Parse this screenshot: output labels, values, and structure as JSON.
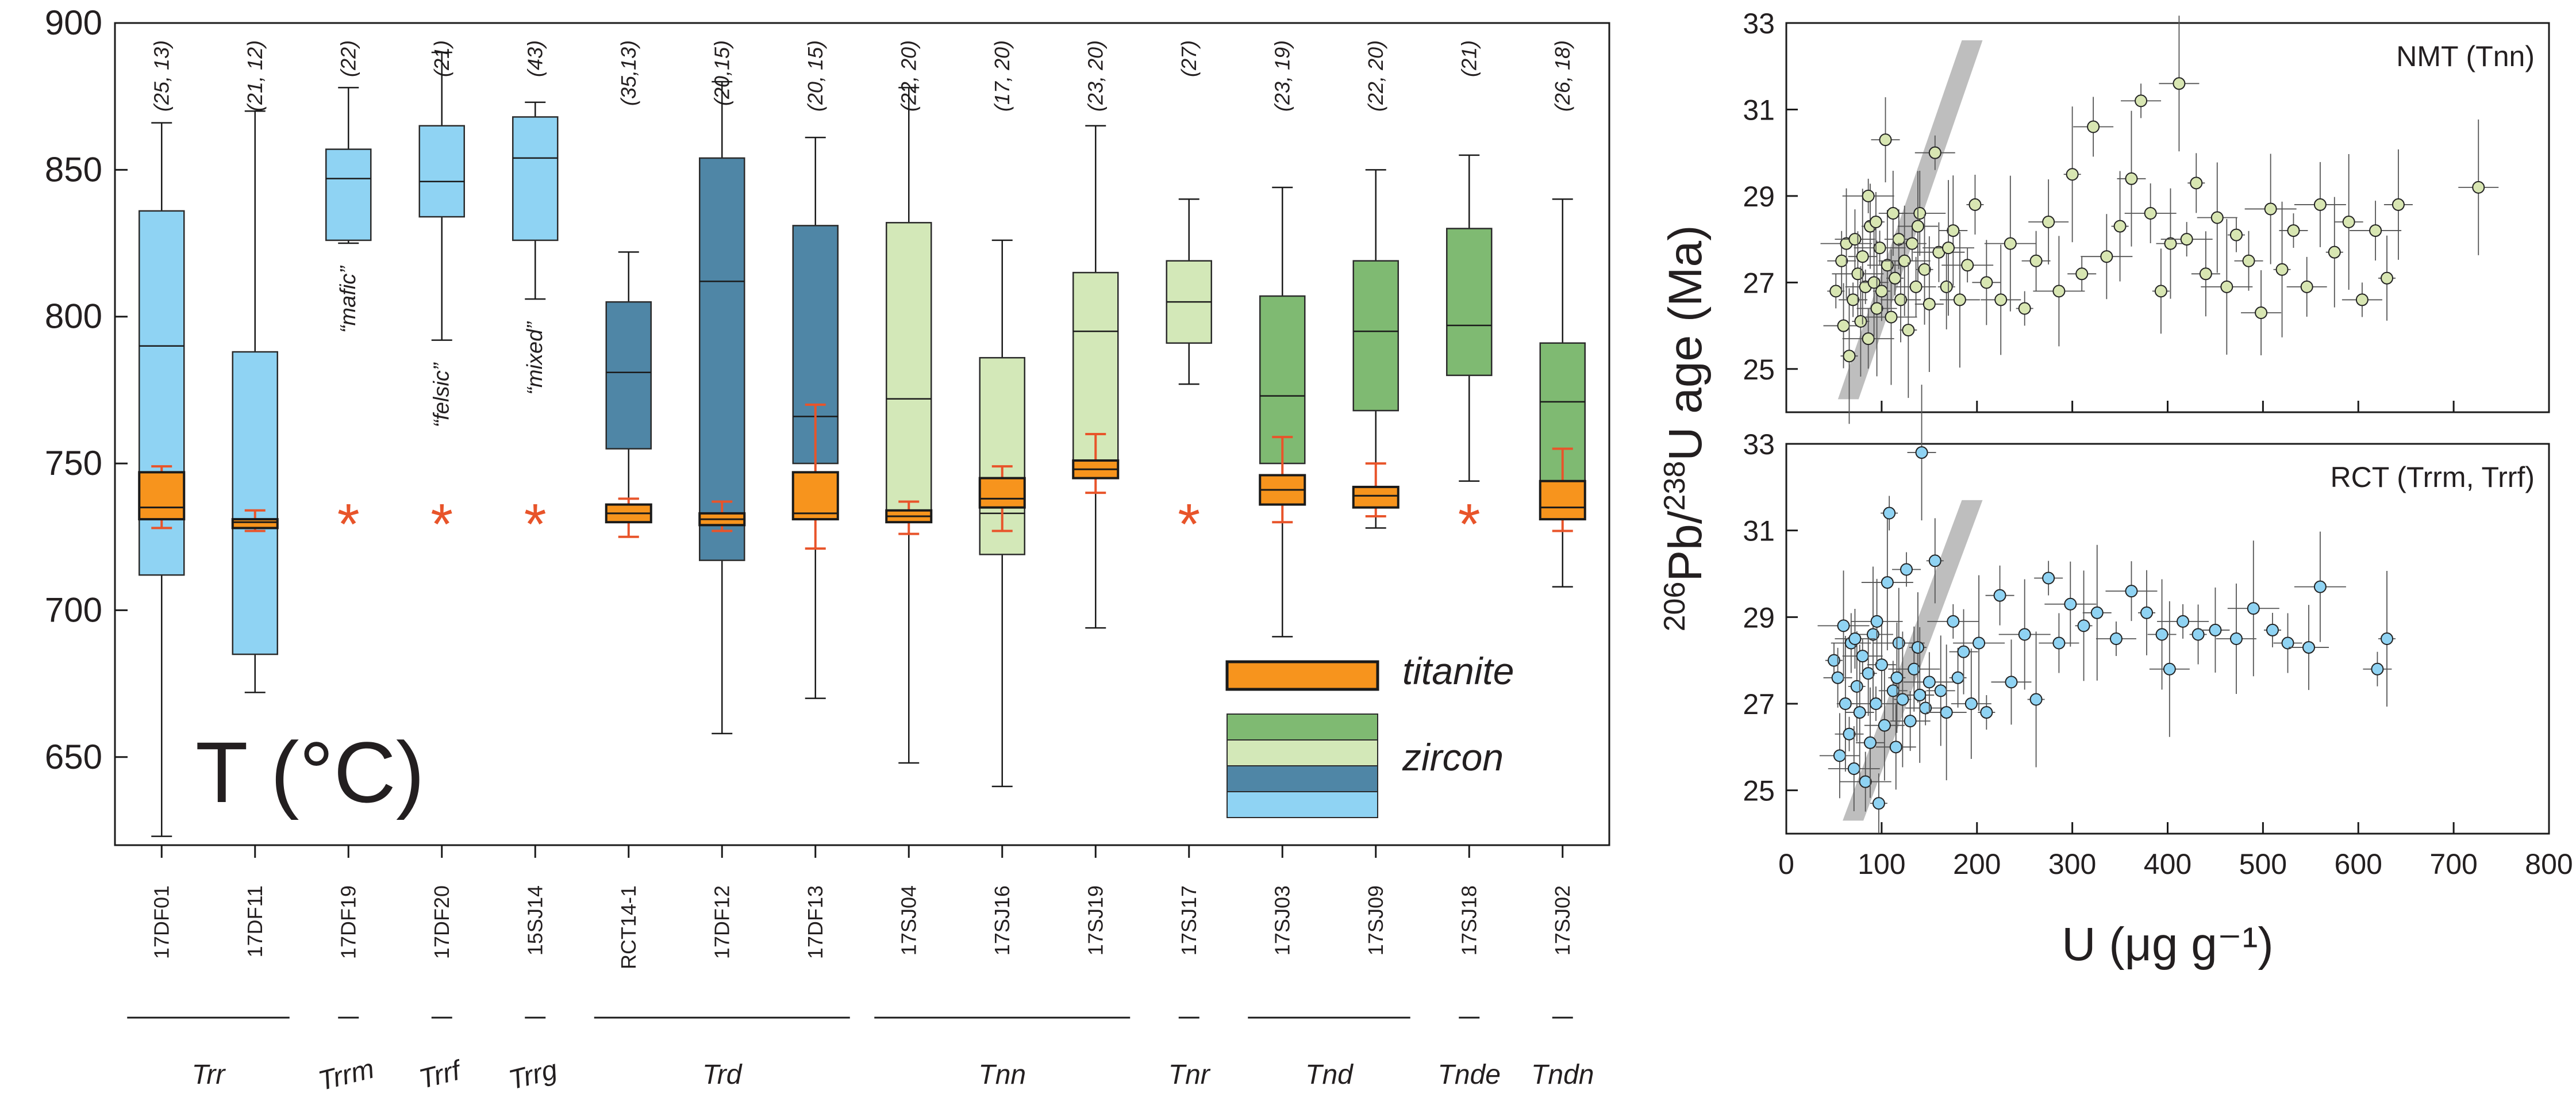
{
  "boxplot": {
    "type": "boxplot",
    "ylabel": "T (°C)",
    "ylim": [
      620,
      900
    ],
    "yticks": [
      650,
      700,
      750,
      800,
      850,
      900
    ],
    "samples": [
      {
        "id": "17DF01",
        "counts": "(25, 13)",
        "zc": "#8fd3f3",
        "z": {
          "wlo": 623,
          "q1": 712,
          "med": 790,
          "q3": 836,
          "whi": 866
        },
        "t": {
          "wlo": 728,
          "q1": 731,
          "med": 735,
          "q3": 747,
          "whi": 749
        }
      },
      {
        "id": "17DF11",
        "counts": "(21, 12)",
        "zc": "#8fd3f3",
        "z": {
          "wlo": 672,
          "q1": 685,
          "med": 730,
          "q3": 788,
          "whi": 870
        },
        "t": {
          "wlo": 727,
          "q1": 728,
          "med": 730,
          "q3": 731,
          "whi": 734
        }
      },
      {
        "id": "17DF19",
        "counts": "(22)",
        "zc": "#8fd3f3",
        "z": {
          "wlo": 825,
          "q1": 826,
          "med": 847,
          "q3": 857,
          "whi": 878
        },
        "star": true,
        "note": "“mafic”"
      },
      {
        "id": "17DF20",
        "counts": "(21)",
        "zc": "#8fd3f3",
        "z": {
          "wlo": 792,
          "q1": 834,
          "med": 846,
          "q3": 865,
          "whi": 890
        },
        "star": true,
        "note": "“felsic”"
      },
      {
        "id": "15SJ14",
        "counts": "(43)",
        "zc": "#8fd3f3",
        "z": {
          "wlo": 806,
          "q1": 826,
          "med": 854,
          "q3": 868,
          "whi": 873
        },
        "star": true,
        "note": "“mixed”"
      },
      {
        "id": "RCT14-1",
        "counts": "(35,13)",
        "zc": "#4f86a6",
        "z": {
          "wlo": 738,
          "q1": 755,
          "med": 781,
          "q3": 805,
          "whi": 822
        },
        "t": {
          "wlo": 725,
          "q1": 730,
          "med": 733,
          "q3": 736,
          "whi": 738
        }
      },
      {
        "id": "17DF12",
        "counts": "(20,15)",
        "zc": "#4f86a6",
        "z": {
          "wlo": 658,
          "q1": 717,
          "med": 812,
          "q3": 854,
          "whi": 880
        },
        "t": {
          "wlo": 727,
          "q1": 729,
          "med": 731,
          "q3": 733,
          "whi": 737
        }
      },
      {
        "id": "17DF13",
        "counts": "(20, 15)",
        "zc": "#4f86a6",
        "z": {
          "wlo": 670,
          "q1": 750,
          "med": 766,
          "q3": 831,
          "whi": 861
        },
        "t": {
          "wlo": 721,
          "q1": 731,
          "med": 733,
          "q3": 747,
          "whi": 770
        }
      },
      {
        "id": "17SJ04",
        "counts": "(22, 20)",
        "zc": "#d3e8b8",
        "z": {
          "wlo": 648,
          "q1": 730,
          "med": 772,
          "q3": 832,
          "whi": 878
        },
        "t": {
          "wlo": 726,
          "q1": 730,
          "med": 732,
          "q3": 734,
          "whi": 737
        }
      },
      {
        "id": "17SJ16",
        "counts": "(17, 20)",
        "zc": "#d3e8b8",
        "z": {
          "wlo": 640,
          "q1": 719,
          "med": 733,
          "q3": 786,
          "whi": 826
        },
        "t": {
          "wlo": 727,
          "q1": 735,
          "med": 738,
          "q3": 745,
          "whi": 749
        }
      },
      {
        "id": "17SJ19",
        "counts": "(23, 20)",
        "zc": "#d3e8b8",
        "z": {
          "wlo": 694,
          "q1": 745,
          "med": 795,
          "q3": 815,
          "whi": 865
        },
        "t": {
          "wlo": 740,
          "q1": 745,
          "med": 748,
          "q3": 751,
          "whi": 760
        }
      },
      {
        "id": "17SJ17",
        "counts": "(27)",
        "zc": "#d3e8b8",
        "z": {
          "wlo": 777,
          "q1": 791,
          "med": 805,
          "q3": 819,
          "whi": 840
        },
        "star": true
      },
      {
        "id": "17SJ03",
        "counts": "(23, 19)",
        "zc": "#7fba72",
        "z": {
          "wlo": 691,
          "q1": 750,
          "med": 773,
          "q3": 807,
          "whi": 844
        },
        "t": {
          "wlo": 730,
          "q1": 736,
          "med": 741,
          "q3": 746,
          "whi": 759
        }
      },
      {
        "id": "17SJ09",
        "counts": "(22, 20)",
        "zc": "#7fba72",
        "z": {
          "wlo": 728,
          "q1": 768,
          "med": 795,
          "q3": 819,
          "whi": 850
        },
        "t": {
          "wlo": 732,
          "q1": 735,
          "med": 739,
          "q3": 742,
          "whi": 750
        }
      },
      {
        "id": "17SJ18",
        "counts": "(21)",
        "zc": "#7fba72",
        "z": {
          "wlo": 744,
          "q1": 780,
          "med": 797,
          "q3": 830,
          "whi": 855
        },
        "star": true
      },
      {
        "id": "17SJ02",
        "counts": "(26, 18)",
        "zc": "#7fba72",
        "z": {
          "wlo": 708,
          "q1": 734,
          "med": 771,
          "q3": 791,
          "whi": 840
        },
        "t": {
          "wlo": 727,
          "q1": 731,
          "med": 735,
          "q3": 744,
          "whi": 755
        }
      }
    ],
    "groups": [
      {
        "label": "Trr",
        "from": 0,
        "to": 1
      },
      {
        "label": "Trrm",
        "from": 2,
        "to": 2
      },
      {
        "label": "Trrf",
        "from": 3,
        "to": 3
      },
      {
        "label": "Trrg",
        "from": 4,
        "to": 4
      },
      {
        "label": "Trd",
        "from": 5,
        "to": 7
      },
      {
        "label": "Tnn",
        "from": 8,
        "to": 10
      },
      {
        "label": "Tnr",
        "from": 11,
        "to": 11
      },
      {
        "label": "Tnd",
        "from": 12,
        "to": 13
      },
      {
        "label": "Tnde",
        "from": 14,
        "to": 14
      },
      {
        "label": "Tndn",
        "from": 15,
        "to": 15
      }
    ],
    "legend": {
      "titanite_label": "titanite",
      "zircon_label": "zircon",
      "titanite_color": "#f7941d",
      "zircon_colors": [
        "#7fba72",
        "#d3e8b8",
        "#4f86a6",
        "#8fd3f3"
      ]
    }
  },
  "scatter": {
    "type": "scatter",
    "xlabel": "U (μg g⁻¹)",
    "ylabel_pre": "206",
    "ylabel_mid": "Pb/",
    "ylabel_sup2": "238",
    "ylabel_post": "U age (Ma)",
    "xlim": [
      0,
      800
    ],
    "xticks": [
      0,
      100,
      200,
      300,
      400,
      500,
      600,
      700,
      800
    ],
    "panels": [
      {
        "label": "NMT (Tnn)",
        "ylim": [
          24,
          33
        ],
        "yticks": [
          25,
          27,
          29,
          31,
          33
        ],
        "point_color": "#d8e6b2",
        "band": {
          "x1": 65,
          "y1": 24.3,
          "x2": 195,
          "y2": 32.6
        },
        "points": [
          [
            52,
            26.8
          ],
          [
            58,
            27.5
          ],
          [
            60,
            26.0
          ],
          [
            63,
            27.9
          ],
          [
            66,
            25.3
          ],
          [
            70,
            26.6
          ],
          [
            72,
            28.0
          ],
          [
            75,
            27.2
          ],
          [
            78,
            26.1
          ],
          [
            80,
            27.6
          ],
          [
            83,
            26.9
          ],
          [
            86,
            25.7
          ],
          [
            88,
            28.3
          ],
          [
            92,
            27.0
          ],
          [
            95,
            26.4
          ],
          [
            98,
            27.8
          ],
          [
            100,
            26.8
          ],
          [
            104,
            30.3
          ],
          [
            106,
            27.4
          ],
          [
            110,
            26.2
          ],
          [
            114,
            27.1
          ],
          [
            118,
            28.0
          ],
          [
            120,
            26.6
          ],
          [
            124,
            27.5
          ],
          [
            128,
            25.9
          ],
          [
            132,
            27.9
          ],
          [
            136,
            26.9
          ],
          [
            140,
            28.6
          ],
          [
            145,
            27.3
          ],
          [
            150,
            26.5
          ],
          [
            156,
            30.0
          ],
          [
            160,
            27.7
          ],
          [
            168,
            26.9
          ],
          [
            175,
            28.2
          ],
          [
            182,
            26.6
          ],
          [
            190,
            27.4
          ],
          [
            198,
            28.8
          ],
          [
            210,
            27.0
          ],
          [
            225,
            26.6
          ],
          [
            235,
            27.9
          ],
          [
            250,
            26.4
          ],
          [
            262,
            27.5
          ],
          [
            275,
            28.4
          ],
          [
            286,
            26.8
          ],
          [
            300,
            29.5
          ],
          [
            310,
            27.2
          ],
          [
            322,
            30.6
          ],
          [
            336,
            27.6
          ],
          [
            350,
            28.3
          ],
          [
            362,
            29.4
          ],
          [
            372,
            31.2
          ],
          [
            382,
            28.6
          ],
          [
            393,
            26.8
          ],
          [
            403,
            27.9
          ],
          [
            412,
            31.6
          ],
          [
            420,
            28.0
          ],
          [
            430,
            29.3
          ],
          [
            440,
            27.2
          ],
          [
            452,
            28.5
          ],
          [
            462,
            26.9
          ],
          [
            472,
            28.1
          ],
          [
            485,
            27.5
          ],
          [
            498,
            26.3
          ],
          [
            508,
            28.7
          ],
          [
            520,
            27.3
          ],
          [
            532,
            28.2
          ],
          [
            546,
            26.9
          ],
          [
            560,
            28.8
          ],
          [
            575,
            27.7
          ],
          [
            590,
            28.4
          ],
          [
            604,
            26.6
          ],
          [
            618,
            28.2
          ],
          [
            630,
            27.1
          ],
          [
            642,
            28.8
          ],
          [
            726,
            29.2
          ],
          [
            86,
            29.0
          ],
          [
            94,
            28.4
          ],
          [
            112,
            28.6
          ],
          [
            138,
            28.3
          ],
          [
            170,
            27.8
          ]
        ]
      },
      {
        "label": "RCT (Trrm, Trrf)",
        "ylim": [
          24,
          33
        ],
        "yticks": [
          25,
          27,
          29,
          31,
          33
        ],
        "point_color": "#8fd3f3",
        "band": {
          "x1": 70,
          "y1": 24.3,
          "x2": 195,
          "y2": 31.7
        },
        "points": [
          [
            50,
            28.0
          ],
          [
            54,
            27.6
          ],
          [
            56,
            25.8
          ],
          [
            60,
            28.8
          ],
          [
            62,
            27.0
          ],
          [
            66,
            26.3
          ],
          [
            68,
            28.4
          ],
          [
            71,
            25.5
          ],
          [
            74,
            27.4
          ],
          [
            77,
            26.8
          ],
          [
            80,
            28.1
          ],
          [
            83,
            25.2
          ],
          [
            86,
            27.7
          ],
          [
            88,
            26.1
          ],
          [
            91,
            28.6
          ],
          [
            94,
            27.0
          ],
          [
            97,
            24.7
          ],
          [
            100,
            27.9
          ],
          [
            103,
            26.5
          ],
          [
            106,
            29.8
          ],
          [
            108,
            31.4
          ],
          [
            112,
            27.3
          ],
          [
            115,
            26.0
          ],
          [
            118,
            28.4
          ],
          [
            122,
            27.1
          ],
          [
            126,
            30.1
          ],
          [
            130,
            26.6
          ],
          [
            134,
            27.8
          ],
          [
            138,
            28.3
          ],
          [
            142,
            32.8
          ],
          [
            146,
            26.9
          ],
          [
            150,
            27.5
          ],
          [
            156,
            30.3
          ],
          [
            162,
            27.3
          ],
          [
            168,
            26.8
          ],
          [
            175,
            28.9
          ],
          [
            180,
            27.6
          ],
          [
            186,
            28.2
          ],
          [
            194,
            27.0
          ],
          [
            202,
            28.4
          ],
          [
            210,
            26.8
          ],
          [
            224,
            29.5
          ],
          [
            236,
            27.5
          ],
          [
            250,
            28.6
          ],
          [
            262,
            27.1
          ],
          [
            275,
            29.9
          ],
          [
            286,
            28.4
          ],
          [
            298,
            29.3
          ],
          [
            312,
            28.8
          ],
          [
            326,
            29.1
          ],
          [
            346,
            28.5
          ],
          [
            362,
            29.6
          ],
          [
            378,
            29.1
          ],
          [
            394,
            28.6
          ],
          [
            402,
            27.8
          ],
          [
            416,
            28.9
          ],
          [
            432,
            28.6
          ],
          [
            450,
            28.7
          ],
          [
            472,
            28.5
          ],
          [
            490,
            29.2
          ],
          [
            510,
            28.7
          ],
          [
            526,
            28.4
          ],
          [
            548,
            28.3
          ],
          [
            560,
            29.7
          ],
          [
            630,
            28.5
          ],
          [
            620,
            27.8
          ],
          [
            72,
            28.5
          ],
          [
            95,
            28.9
          ],
          [
            116,
            27.6
          ],
          [
            140,
            27.2
          ]
        ]
      }
    ]
  }
}
